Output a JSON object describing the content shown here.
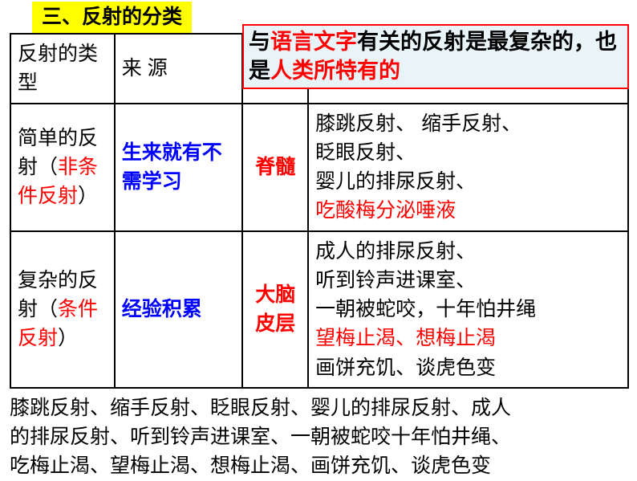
{
  "title": "三、反射的分类",
  "callout": {
    "p1": "与",
    "p2": "语言文字",
    "p3": "有关的反射是最复杂的，也是",
    "p4": "人类所特有的"
  },
  "headers": {
    "col1": "反射的类型",
    "col2": "来 源"
  },
  "row1": {
    "type_a": "简单的反射（",
    "type_b": "非条件反射",
    "type_c": "）",
    "source": "生来就有不需学习",
    "center": "脊髓",
    "ex1": "膝跳反射、 缩手反射、",
    "ex2": "眨眼反射、",
    "ex3": "婴儿的排尿反射、",
    "ex4": "吃酸梅分泌唾液"
  },
  "row2": {
    "type_a": "复杂的反射（",
    "type_b": "条件反射",
    "type_c": "）",
    "source": "经验积累",
    "center": "大脑皮层",
    "ex1": "成人的排尿反射、",
    "ex2": "听到铃声进课室、",
    "ex3": "一朝被蛇咬，十年怕井绳",
    "ex4": "望梅止渴、想梅止渴",
    "ex5": "画饼充饥、谈虎色变"
  },
  "bottom": {
    "l1": "膝跳反射、缩手反射、眨眼反射、婴儿的排尿反射、成人",
    "l2": "的排尿反射、听到铃声进课室、一朝被蛇咬十年怕井绳、",
    "l3": "吃梅止渴、望梅止渴、想梅止渴、画饼充饥、谈虎色变"
  },
  "colors": {
    "red": "#ff0000",
    "blue": "#0000ff",
    "yellow": "#ffff00",
    "callout_bg": "#e8f4f8"
  }
}
